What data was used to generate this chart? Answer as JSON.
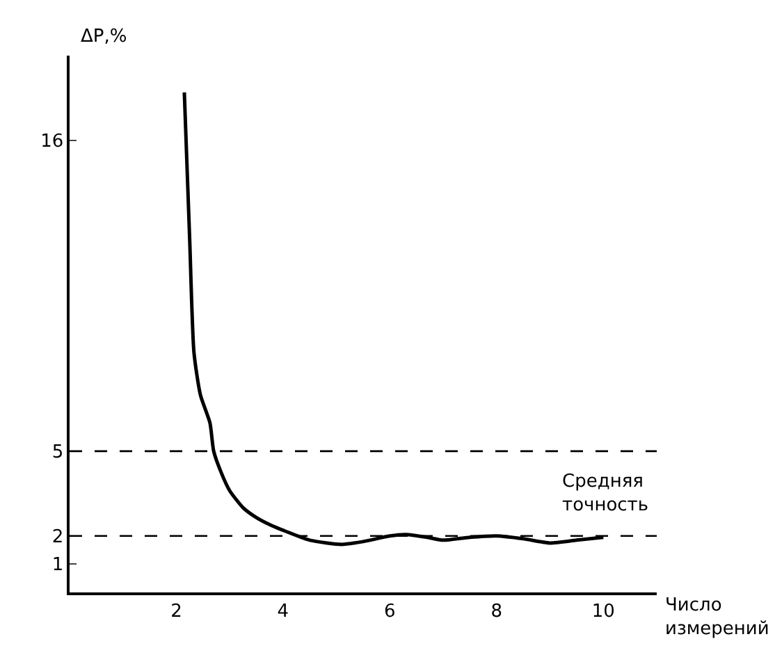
{
  "chart_data": {
    "type": "line",
    "xlabel": "Число\nизмерений",
    "ylabel": "ΔP,%",
    "x": [
      2.15,
      2.25,
      2.33,
      2.45,
      2.63,
      2.7,
      2.85,
      3.0,
      3.25,
      3.5,
      3.75,
      4.0,
      4.5,
      5.1,
      5.5,
      6.0,
      6.3,
      6.7,
      7.0,
      7.5,
      8.0,
      8.5,
      9.0,
      9.5,
      10.0
    ],
    "series": [
      {
        "color": "#000000",
        "values": [
          17.7,
          12.5,
          8.5,
          7.0,
          6.0,
          5.0,
          4.2,
          3.6,
          3.0,
          2.65,
          2.4,
          2.2,
          1.85,
          1.7,
          1.8,
          2.0,
          2.05,
          1.95,
          1.85,
          1.95,
          2.0,
          1.9,
          1.75,
          1.85,
          1.95
        ]
      }
    ],
    "xlim": [
      0,
      11
    ],
    "ylim": [
      0,
      19
    ],
    "xticks": [
      2,
      4,
      6,
      8,
      10
    ],
    "yticks": [
      1,
      2,
      5,
      16
    ],
    "grid": false,
    "legend": false,
    "marker": "none",
    "line_style": "solid",
    "ref_lines": [
      {
        "axis": "y",
        "value": 5,
        "line_style": "dashed",
        "color": "#000000"
      },
      {
        "axis": "y",
        "value": 2,
        "line_style": "dashed",
        "color": "#000000"
      }
    ],
    "annotations": [
      "Средняя\nточность"
    ]
  }
}
